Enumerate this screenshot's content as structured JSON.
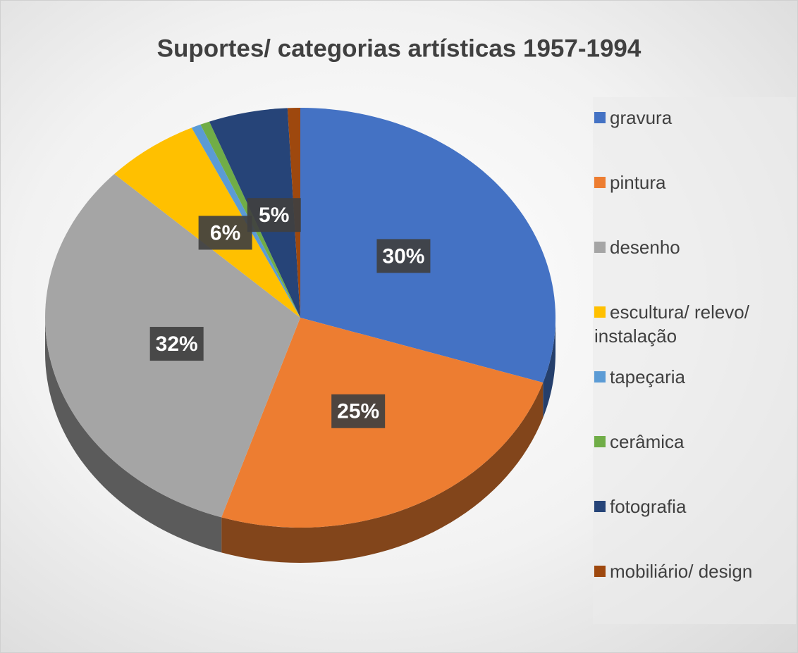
{
  "chart_data": {
    "type": "pie",
    "title": "Suportes/ categorias artísticas 1957-1994",
    "categories": [
      "gravura",
      "pintura",
      "desenho",
      "escultura/ relevo/ instalação",
      "tapeçaria",
      "cerâmica",
      "fotografia",
      "mobiliário/ design"
    ],
    "values": [
      30,
      25,
      32,
      6,
      0.6,
      0.6,
      5,
      0.8
    ],
    "value_labels": [
      "30%",
      "25%",
      "32%",
      "6%",
      null,
      null,
      "5%",
      null
    ],
    "colors": [
      "#4472c4",
      "#ed7d31",
      "#a5a5a5",
      "#ffc000",
      "#5b9bd5",
      "#70ad47",
      "#264478",
      "#9e480e"
    ],
    "legend": "right",
    "three_d": true
  }
}
